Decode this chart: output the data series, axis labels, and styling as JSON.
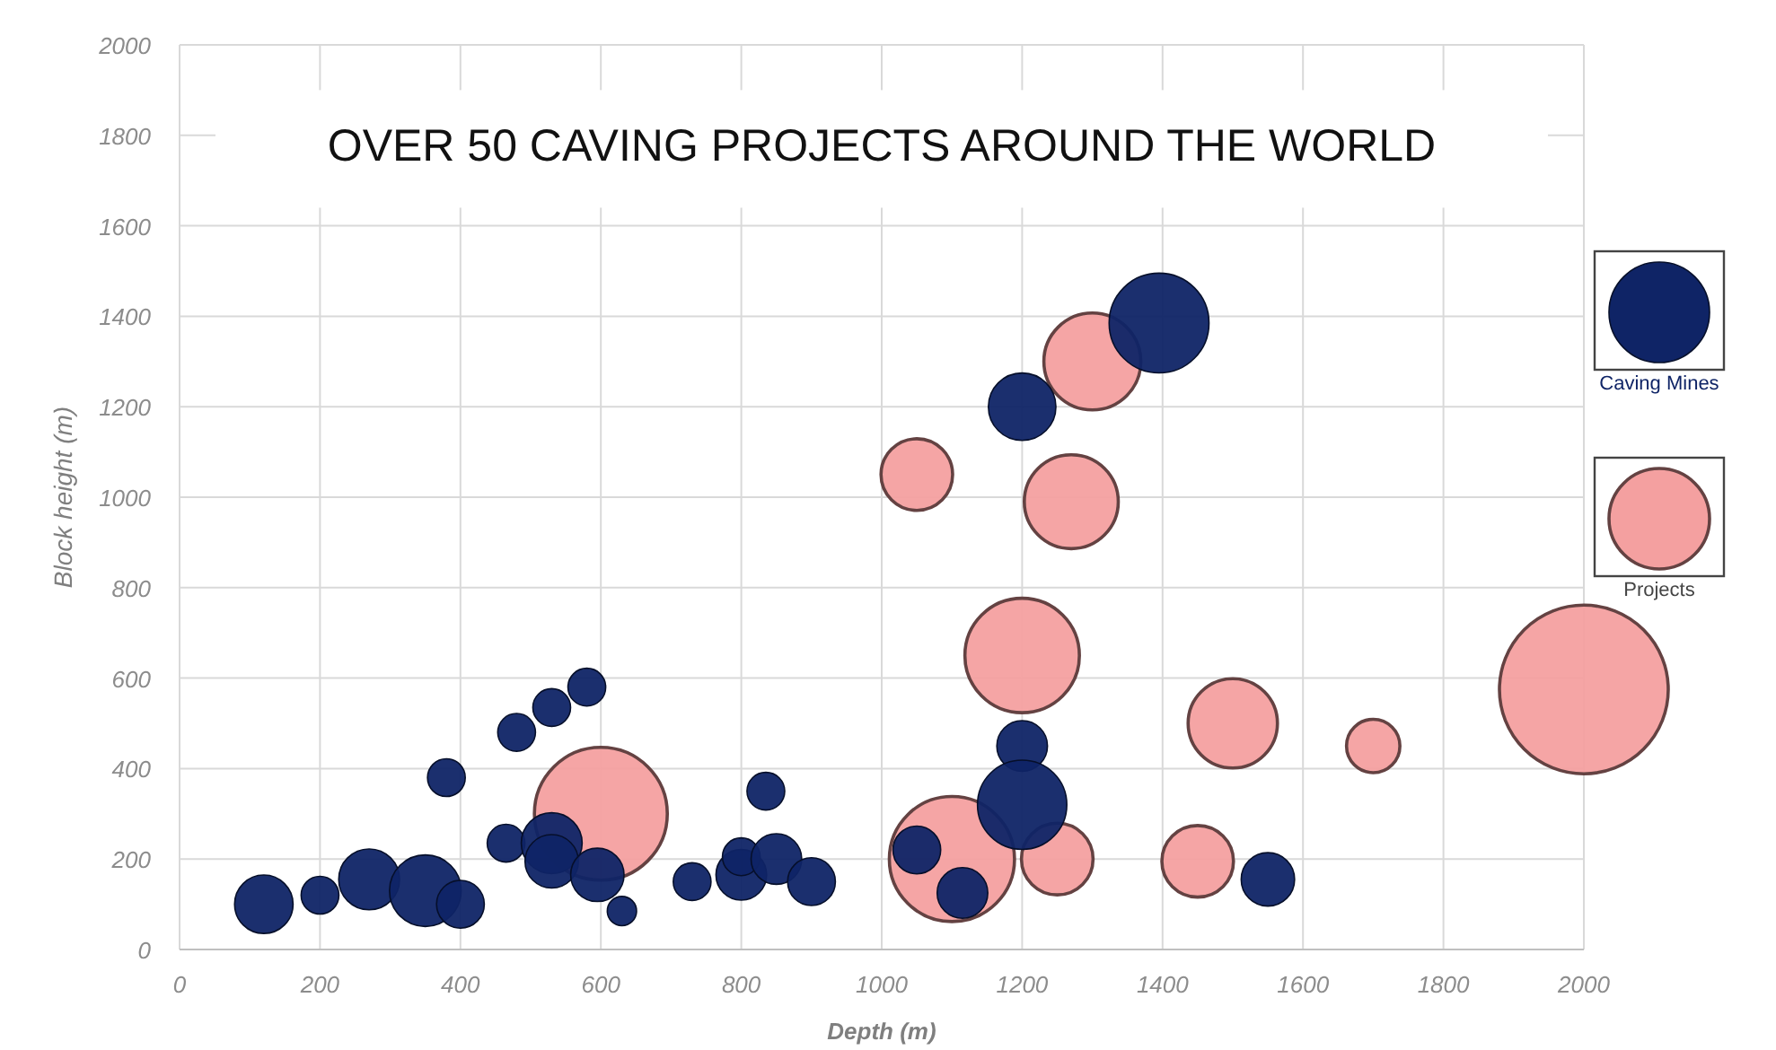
{
  "chart_data": {
    "type": "bubble",
    "title": "OVER 50 CAVING PROJECTS AROUND THE WORLD",
    "xlabel": "Depth (m)",
    "ylabel": "Block height (m)",
    "xlim": [
      0,
      2000
    ],
    "xticks": [
      0,
      200,
      400,
      600,
      800,
      1000,
      1200,
      1400,
      1600,
      1800,
      2000
    ],
    "ylim": [
      0,
      2000
    ],
    "yticks": [
      0,
      200,
      400,
      600,
      800,
      1000,
      1200,
      1400,
      1600,
      1800,
      2000
    ],
    "grid": true,
    "legend": "right",
    "series": [
      {
        "name": "Caving Mines",
        "color": "#0f2466",
        "x": [
          120,
          200,
          270,
          350,
          400,
          380,
          465,
          480,
          530,
          580,
          530,
          530,
          595,
          630,
          730,
          800,
          800,
          835,
          850,
          900,
          1050,
          1115,
          1200,
          1200,
          1200,
          1395,
          1550
        ],
        "values": [
          100,
          120,
          155,
          130,
          100,
          380,
          235,
          480,
          535,
          580,
          235,
          195,
          165,
          85,
          150,
          165,
          205,
          350,
          200,
          150,
          220,
          125,
          450,
          320,
          1200,
          1385,
          155
        ],
        "sizes": [
          0.12,
          0.05,
          0.13,
          0.18,
          0.08,
          0.05,
          0.05,
          0.05,
          0.05,
          0.05,
          0.13,
          0.1,
          0.1,
          0.03,
          0.05,
          0.09,
          0.05,
          0.05,
          0.09,
          0.08,
          0.08,
          0.09,
          0.09,
          0.28,
          0.16,
          0.35,
          0.1
        ]
      },
      {
        "name": "Projects",
        "color": "#f4a0a0",
        "x": [
          600,
          1100,
          1250,
          1050,
          1270,
          1300,
          1200,
          1450,
          1500,
          1700,
          2000
        ],
        "values": [
          300,
          200,
          200,
          1050,
          990,
          1300,
          650,
          195,
          500,
          450,
          575
        ],
        "sizes": [
          0.62,
          0.55,
          0.18,
          0.18,
          0.31,
          0.33,
          0.46,
          0.18,
          0.28,
          0.1,
          1
        ]
      }
    ]
  }
}
